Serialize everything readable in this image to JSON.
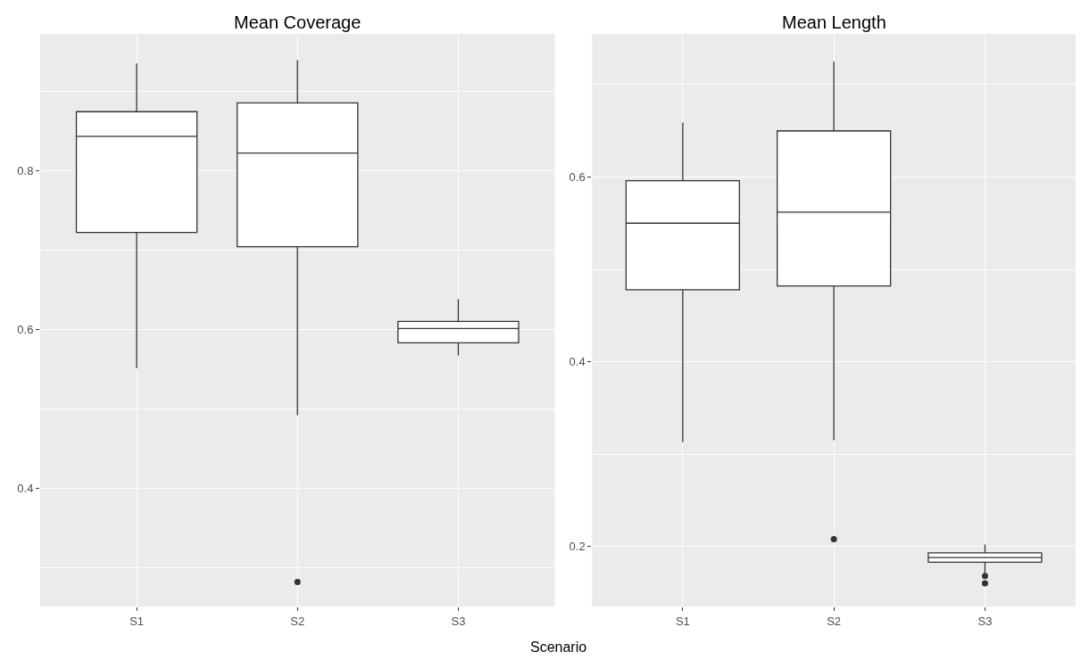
{
  "chart_data": [
    {
      "type": "box",
      "title": "Mean Coverage",
      "xlabel": "Scenario",
      "categories": [
        "S1",
        "S2",
        "S3"
      ],
      "ylim": [
        0.251,
        0.972
      ],
      "yticks": [
        0.4,
        0.6,
        0.8
      ],
      "grid": true,
      "color": "#333333",
      "boxes": [
        {
          "low": 0.551,
          "q1": 0.722,
          "median": 0.843,
          "q3": 0.874,
          "high": 0.935
        },
        {
          "low": 0.492,
          "q1": 0.704,
          "median": 0.822,
          "q3": 0.885,
          "high": 0.939,
          "outliers": [
            0.282
          ]
        },
        {
          "low": 0.567,
          "q1": 0.583,
          "median": 0.601,
          "q3": 0.61,
          "high": 0.638
        }
      ]
    },
    {
      "type": "box",
      "title": "Mean Length",
      "categories": [
        "S1",
        "S2",
        "S3"
      ],
      "ylim": [
        0.135,
        0.755
      ],
      "yticks": [
        0.2,
        0.4,
        0.6
      ],
      "grid": true,
      "color": "#333333",
      "boxes": [
        {
          "low": 0.313,
          "q1": 0.478,
          "median": 0.55,
          "q3": 0.596,
          "high": 0.659
        },
        {
          "low": 0.315,
          "q1": 0.482,
          "median": 0.562,
          "q3": 0.65,
          "high": 0.725,
          "outliers": [
            0.208
          ]
        },
        {
          "low": 0.171,
          "q1": 0.183,
          "median": 0.188,
          "q3": 0.193,
          "high": 0.202,
          "outliers": [
            0.168,
            0.16
          ]
        }
      ]
    }
  ]
}
